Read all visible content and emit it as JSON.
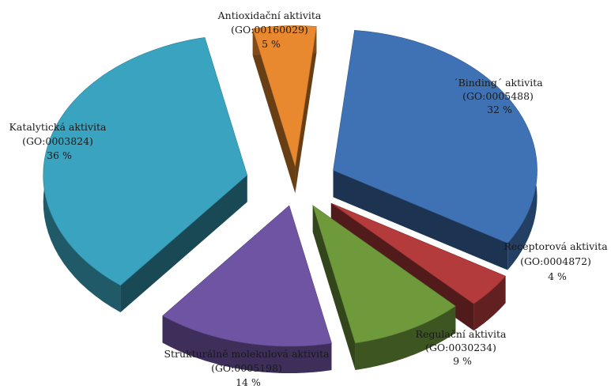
{
  "chart_data": {
    "type": "pie",
    "style": "3d-exploded",
    "title": "",
    "slices": [
      {
        "name": "´Binding´ aktivita",
        "go": "(GO:0005488)",
        "pct_label": "32 %",
        "value": 32,
        "color": "#3f72b4"
      },
      {
        "name": "Receptorová aktivita",
        "go": "(GO:0004872)",
        "pct_label": "4 %",
        "value": 4,
        "color": "#b43b3b"
      },
      {
        "name": "Regulační aktivita",
        "go": "(GO:0030234)",
        "pct_label": "9 %",
        "value": 9,
        "color": "#6e9a3c"
      },
      {
        "name": "Strukturálně molekulová aktivita",
        "go": "(GO:0005198)",
        "pct_label": "14 %",
        "value": 14,
        "color": "#6f54a3"
      },
      {
        "name": "Katalytická aktivita",
        "go": "(GO:0003824)",
        "pct_label": "36 %",
        "value": 36,
        "color": "#3aa3bf"
      },
      {
        "name": "Antioxidační aktivita",
        "go": "(GO:00160029)",
        "pct_label": "5 %",
        "value": 5,
        "color": "#e8892f"
      }
    ]
  }
}
